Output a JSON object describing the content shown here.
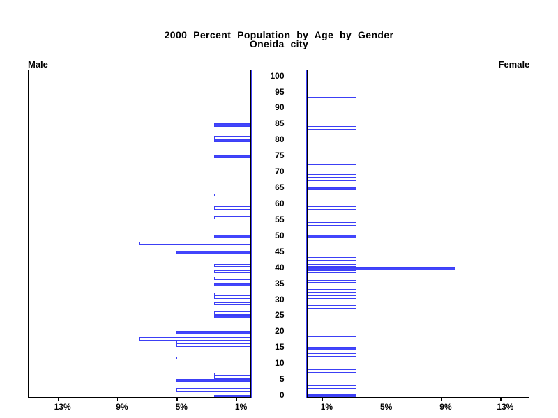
{
  "title": {
    "line1": "2000 Percent Population by Age by Gender",
    "line2": "Oneida city"
  },
  "panel_labels": {
    "male": "Male",
    "female": "Female"
  },
  "colors": {
    "bar_fill": "#4245fc",
    "bar_outline": "#3c3ff5",
    "axis_line": "#4245fc",
    "frame": "#000000",
    "text": "#000000",
    "background": "#ffffff"
  },
  "age_axis_labels": [
    "100",
    "95",
    "90",
    "85",
    "80",
    "75",
    "70",
    "65",
    "60",
    "55",
    "50",
    "45",
    "40",
    "35",
    "30",
    "25",
    "20",
    "15",
    "10",
    "5",
    "0"
  ],
  "male_pct_axis_labels": [
    "13%",
    "9%",
    "5%",
    "1%"
  ],
  "female_pct_axis_labels": [
    "1%",
    "5%",
    "9%",
    "13%"
  ],
  "chart_data": {
    "type": "bar",
    "variant": "population-pyramid",
    "title": "2000 Percent Population by Age by Gender",
    "subtitle": "Oneida city",
    "age_axis": {
      "min": 0,
      "max": 100,
      "label_step": 5
    },
    "pct_axis": {
      "ticks": [
        1,
        5,
        9,
        13
      ],
      "max": 15,
      "unit": "%"
    },
    "legend": "none",
    "grid": false,
    "bar_style_rule": "bars for ages divisible by 5 are solid filled blue; other ages are white with blue outline",
    "series": [
      {
        "name": "Male",
        "side": "left",
        "points": [
          {
            "age": 0,
            "pct": 2.5,
            "solid": true
          },
          {
            "age": 2,
            "pct": 5.0,
            "solid": false
          },
          {
            "age": 5,
            "pct": 5.0,
            "solid": true
          },
          {
            "age": 6,
            "pct": 2.5,
            "solid": false
          },
          {
            "age": 7,
            "pct": 2.5,
            "solid": false
          },
          {
            "age": 12,
            "pct": 5.0,
            "solid": false
          },
          {
            "age": 16,
            "pct": 5.0,
            "solid": false
          },
          {
            "age": 17,
            "pct": 5.0,
            "solid": false
          },
          {
            "age": 18,
            "pct": 7.5,
            "solid": false
          },
          {
            "age": 20,
            "pct": 5.0,
            "solid": true
          },
          {
            "age": 25,
            "pct": 2.5,
            "solid": true
          },
          {
            "age": 26,
            "pct": 2.5,
            "solid": false
          },
          {
            "age": 29,
            "pct": 2.5,
            "solid": false
          },
          {
            "age": 31,
            "pct": 2.5,
            "solid": false
          },
          {
            "age": 32,
            "pct": 2.5,
            "solid": false
          },
          {
            "age": 35,
            "pct": 2.5,
            "solid": true
          },
          {
            "age": 37,
            "pct": 2.5,
            "solid": false
          },
          {
            "age": 39,
            "pct": 2.5,
            "solid": false
          },
          {
            "age": 41,
            "pct": 2.5,
            "solid": false
          },
          {
            "age": 45,
            "pct": 5.0,
            "solid": true
          },
          {
            "age": 48,
            "pct": 7.5,
            "solid": false
          },
          {
            "age": 50,
            "pct": 2.5,
            "solid": true
          },
          {
            "age": 56,
            "pct": 2.5,
            "solid": false
          },
          {
            "age": 59,
            "pct": 2.5,
            "solid": false
          },
          {
            "age": 63,
            "pct": 2.5,
            "solid": false
          },
          {
            "age": 75,
            "pct": 2.5,
            "solid": true
          },
          {
            "age": 80,
            "pct": 2.5,
            "solid": true
          },
          {
            "age": 81,
            "pct": 2.5,
            "solid": false
          },
          {
            "age": 85,
            "pct": 2.5,
            "solid": true
          }
        ]
      },
      {
        "name": "Female",
        "side": "right",
        "points": [
          {
            "age": 0,
            "pct": 3.33,
            "solid": true
          },
          {
            "age": 1,
            "pct": 3.33,
            "solid": false
          },
          {
            "age": 3,
            "pct": 3.33,
            "solid": false
          },
          {
            "age": 8,
            "pct": 3.33,
            "solid": false
          },
          {
            "age": 9,
            "pct": 3.33,
            "solid": false
          },
          {
            "age": 12,
            "pct": 3.33,
            "solid": false
          },
          {
            "age": 13,
            "pct": 3.33,
            "solid": false
          },
          {
            "age": 15,
            "pct": 3.33,
            "solid": true
          },
          {
            "age": 19,
            "pct": 3.33,
            "solid": false
          },
          {
            "age": 28,
            "pct": 3.33,
            "solid": false
          },
          {
            "age": 31,
            "pct": 3.33,
            "solid": false
          },
          {
            "age": 32,
            "pct": 3.33,
            "solid": false
          },
          {
            "age": 33,
            "pct": 3.33,
            "solid": false
          },
          {
            "age": 36,
            "pct": 3.33,
            "solid": false
          },
          {
            "age": 39,
            "pct": 3.33,
            "solid": false
          },
          {
            "age": 40,
            "pct": 10.0,
            "solid": true
          },
          {
            "age": 41,
            "pct": 3.33,
            "solid": false
          },
          {
            "age": 43,
            "pct": 3.33,
            "solid": false
          },
          {
            "age": 50,
            "pct": 3.33,
            "solid": true
          },
          {
            "age": 54,
            "pct": 3.33,
            "solid": false
          },
          {
            "age": 58,
            "pct": 3.33,
            "solid": false
          },
          {
            "age": 59,
            "pct": 3.33,
            "solid": false
          },
          {
            "age": 65,
            "pct": 3.33,
            "solid": true
          },
          {
            "age": 68,
            "pct": 3.33,
            "solid": false
          },
          {
            "age": 69,
            "pct": 3.33,
            "solid": false
          },
          {
            "age": 73,
            "pct": 3.33,
            "solid": false
          },
          {
            "age": 84,
            "pct": 3.33,
            "solid": false
          },
          {
            "age": 94,
            "pct": 3.33,
            "solid": false
          }
        ]
      }
    ]
  }
}
